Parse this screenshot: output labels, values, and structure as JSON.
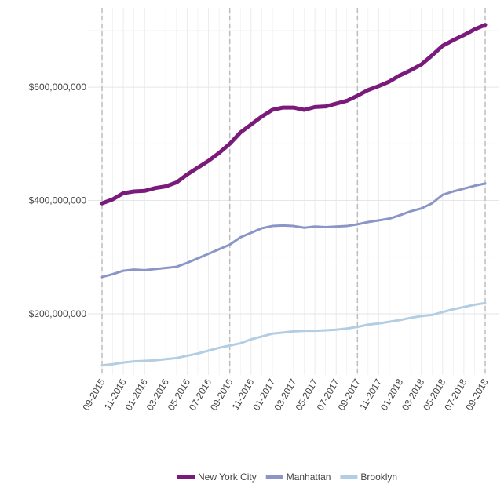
{
  "chart_data": {
    "type": "line",
    "categories": [
      "09-2015",
      null,
      "11-2015",
      null,
      "01-2016",
      null,
      "03-2016",
      null,
      "05-2016",
      null,
      "07-2016",
      null,
      "09-2016",
      null,
      "11-2016",
      null,
      "01-2017",
      null,
      "03-2017",
      null,
      "05-2017",
      null,
      "07-2017",
      null,
      "09-2017",
      null,
      "11-2017",
      null,
      "01-2018",
      null,
      "03-2018",
      null,
      "05-2018",
      null,
      "07-2018",
      null,
      "09-2018"
    ],
    "series": [
      {
        "name": "New York City",
        "color": "#7a1a7b",
        "values": [
          395000000,
          402000000,
          413000000,
          416000000,
          417000000,
          422000000,
          425000000,
          432000000,
          446000000,
          458000000,
          470000000,
          484000000,
          500000000,
          520000000,
          534000000,
          548000000,
          560000000,
          564000000,
          564000000,
          560000000,
          565000000,
          566000000,
          571000000,
          576000000,
          585000000,
          595000000,
          602000000,
          610000000,
          621000000,
          630000000,
          640000000,
          656000000,
          673000000,
          683000000,
          692000000,
          702000000,
          710000000
        ]
      },
      {
        "name": "Manhattan",
        "color": "#8c96c6",
        "values": [
          265000000,
          270000000,
          276000000,
          278000000,
          277000000,
          279000000,
          281000000,
          283000000,
          290000000,
          298000000,
          306000000,
          314000000,
          322000000,
          335000000,
          343000000,
          351000000,
          355000000,
          356000000,
          355000000,
          352000000,
          354000000,
          353000000,
          354000000,
          355000000,
          358000000,
          362000000,
          365000000,
          368000000,
          374000000,
          381000000,
          386000000,
          395000000,
          410000000,
          416000000,
          421000000,
          426000000,
          430000000
        ]
      },
      {
        "name": "Brooklyn",
        "color": "#b3cde3",
        "values": [
          109000000,
          111000000,
          114000000,
          116000000,
          117000000,
          118000000,
          120000000,
          122000000,
          126000000,
          130000000,
          135000000,
          140000000,
          144000000,
          148000000,
          155000000,
          160000000,
          165000000,
          167000000,
          169000000,
          170000000,
          170000000,
          171000000,
          172000000,
          174000000,
          177000000,
          181000000,
          183000000,
          186000000,
          189000000,
          193000000,
          196000000,
          198000000,
          203000000,
          208000000,
          212000000,
          216000000,
          219000000
        ]
      }
    ],
    "ylim": [
      92000000,
      740000000
    ],
    "yticks": [
      {
        "value": 200000000,
        "label": "$200,000,000"
      },
      {
        "value": 400000000,
        "label": "$400,000,000"
      },
      {
        "value": 600000000,
        "label": "$600,000,000"
      }
    ],
    "yminor_ticks": [
      300000000,
      500000000,
      700000000
    ],
    "reference_lines": [
      "09-2015",
      "09-2016",
      "09-2017",
      "09-2018"
    ],
    "grid": true,
    "legend": "bottom"
  }
}
